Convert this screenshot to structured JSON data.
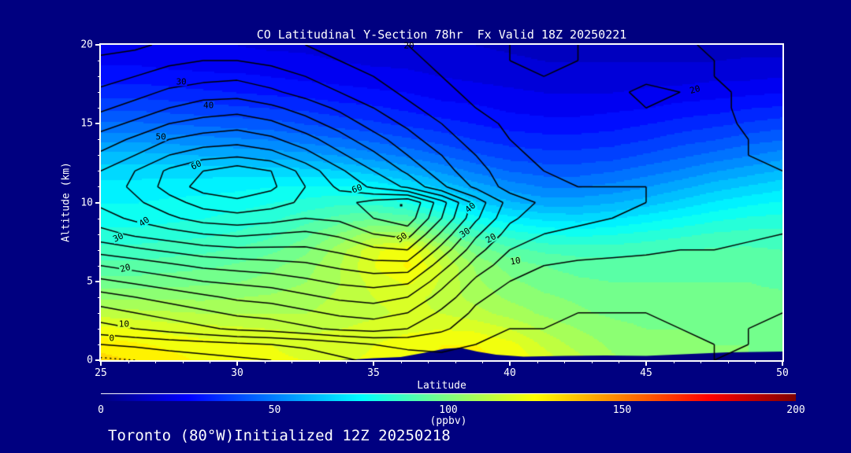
{
  "title": "CO Latitudinal Y-Section 78hr  Fx Valid 18Z 20250221",
  "footer": "Toronto (80°W)Initialized 12Z 20250218",
  "colors": {
    "background": "#000080",
    "text": "#ffffff",
    "contour_line": "#000000",
    "terrain": "#000080",
    "frame": "#ffffff"
  },
  "chart_data": {
    "type": "heatmap",
    "title": "CO Latitudinal Y-Section 78hr  Fx Valid 18Z 20250221",
    "xlabel": "Latitude",
    "ylabel": "Altitude (km)",
    "xlim": [
      25,
      50
    ],
    "ylim": [
      0,
      20
    ],
    "xticks": [
      25,
      30,
      35,
      40,
      45,
      50
    ],
    "yticks": [
      0,
      5,
      10,
      15,
      20
    ],
    "x_minor_step": 1,
    "y_minor_step": 1,
    "fill_units": "ppbv",
    "fill_range": [
      0,
      200
    ],
    "fill_band_step": 5,
    "grid_lats": [
      25,
      26.25,
      27.5,
      28.75,
      30,
      31.25,
      32.5,
      33.75,
      35,
      36.25,
      37.5,
      38.75,
      40,
      41.25,
      42.5,
      43.75,
      45,
      46.25,
      47.5,
      48.75,
      50
    ],
    "grid_alts": [
      0,
      1,
      2,
      3,
      4,
      5,
      6,
      7,
      8,
      9,
      10,
      11,
      12,
      13,
      14,
      15,
      16,
      17,
      18,
      19,
      20
    ],
    "fill_grid": [
      [
        132,
        130,
        127,
        124,
        122,
        121,
        120,
        119,
        121,
        124,
        126,
        127,
        125,
        118,
        112,
        106,
        103,
        102,
        101,
        100,
        100
      ],
      [
        128,
        126,
        124,
        122,
        121,
        120,
        118,
        118,
        120,
        123,
        125,
        125,
        122,
        114,
        108,
        104,
        102,
        101,
        100,
        100,
        99
      ],
      [
        122,
        120,
        118,
        117,
        116,
        115,
        114,
        115,
        117,
        119,
        120,
        119,
        115,
        109,
        105,
        102,
        100,
        100,
        99,
        99,
        98
      ],
      [
        113,
        112,
        111,
        110,
        110,
        110,
        110,
        112,
        114,
        116,
        115,
        112,
        108,
        104,
        101,
        99,
        98,
        98,
        98,
        97,
        97
      ],
      [
        104,
        104,
        104,
        104,
        105,
        106,
        108,
        111,
        115,
        117,
        113,
        108,
        104,
        101,
        99,
        97,
        97,
        97,
        96,
        96,
        96
      ],
      [
        97,
        97,
        98,
        99,
        100,
        102,
        105,
        110,
        117,
        121,
        114,
        106,
        101,
        98,
        96,
        95,
        95,
        95,
        95,
        95,
        94
      ],
      [
        92,
        92,
        93,
        94,
        96,
        99,
        103,
        110,
        120,
        126,
        115,
        104,
        98,
        95,
        93,
        92,
        93,
        93,
        93,
        93,
        92
      ],
      [
        87,
        87,
        88,
        89,
        91,
        94,
        99,
        108,
        119,
        124,
        110,
        98,
        92,
        89,
        88,
        88,
        89,
        90,
        91,
        91,
        90
      ],
      [
        82,
        82,
        83,
        84,
        86,
        89,
        94,
        101,
        108,
        108,
        97,
        88,
        83,
        80,
        79,
        80,
        82,
        84,
        86,
        87,
        87
      ],
      [
        78,
        78,
        79,
        80,
        82,
        84,
        88,
        92,
        95,
        93,
        85,
        77,
        72,
        69,
        68,
        70,
        73,
        76,
        79,
        81,
        82
      ],
      [
        75,
        75,
        76,
        77,
        78,
        80,
        82,
        84,
        84,
        80,
        73,
        66,
        61,
        58,
        58,
        60,
        63,
        67,
        71,
        74,
        76
      ],
      [
        72,
        72,
        73,
        73,
        74,
        75,
        76,
        76,
        74,
        70,
        64,
        58,
        53,
        50,
        50,
        52,
        55,
        59,
        63,
        66,
        69
      ],
      [
        68,
        68,
        68,
        68,
        68,
        68,
        67,
        66,
        63,
        59,
        54,
        49,
        45,
        43,
        43,
        45,
        48,
        51,
        55,
        58,
        61
      ],
      [
        62,
        62,
        61,
        60,
        59,
        58,
        57,
        55,
        52,
        49,
        45,
        41,
        38,
        37,
        37,
        38,
        41,
        44,
        47,
        50,
        53
      ],
      [
        54,
        54,
        53,
        52,
        51,
        50,
        48,
        46,
        44,
        41,
        38,
        35,
        33,
        32,
        32,
        33,
        35,
        38,
        40,
        43,
        45
      ],
      [
        46,
        46,
        45,
        44,
        43,
        42,
        40,
        38,
        36,
        34,
        32,
        30,
        28,
        27,
        27,
        28,
        30,
        32,
        34,
        36,
        38
      ],
      [
        39,
        39,
        38,
        37,
        36,
        35,
        34,
        32,
        31,
        29,
        27,
        26,
        24,
        23,
        23,
        24,
        25,
        27,
        28,
        30,
        31
      ],
      [
        33,
        33,
        32,
        31,
        30,
        29,
        28,
        27,
        26,
        25,
        23,
        22,
        21,
        20,
        20,
        20,
        21,
        22,
        23,
        24,
        25
      ],
      [
        28,
        28,
        27,
        26,
        26,
        25,
        24,
        23,
        22,
        21,
        20,
        19,
        18,
        17,
        17,
        17,
        18,
        18,
        19,
        19,
        20
      ],
      [
        24,
        24,
        23,
        23,
        22,
        22,
        21,
        20,
        19,
        19,
        18,
        17,
        16,
        15,
        15,
        15,
        15,
        15,
        15,
        16,
        16
      ],
      [
        21,
        21,
        20,
        20,
        20,
        19,
        19,
        18,
        18,
        17,
        16,
        15,
        14,
        13,
        13,
        12,
        12,
        12,
        12,
        12,
        12
      ]
    ],
    "line_levels_step": 5,
    "line_levels_min": -5,
    "line_levels_max": 70,
    "line_grid": [
      [
        -6,
        -5,
        -3,
        -2,
        -1,
        0,
        2,
        4,
        6,
        8,
        9,
        9,
        8,
        7,
        7,
        7,
        8,
        9,
        10,
        9,
        8
      ],
      [
        0,
        1,
        2,
        3,
        4,
        5,
        6,
        8,
        10,
        11,
        11,
        10,
        9,
        8,
        8,
        8,
        8,
        9,
        10,
        10,
        9
      ],
      [
        8,
        10,
        12,
        14,
        16,
        17,
        19,
        21,
        22,
        20,
        16,
        12,
        10,
        10,
        9,
        9,
        9,
        10,
        10,
        10,
        9
      ],
      [
        13,
        15,
        17,
        19,
        21,
        22,
        24,
        26,
        27,
        25,
        19,
        14,
        12,
        11,
        10,
        10,
        10,
        10,
        10,
        10,
        10
      ],
      [
        18,
        20,
        22,
        24,
        26,
        27,
        29,
        31,
        32,
        30,
        23,
        16,
        13,
        12,
        11,
        11,
        11,
        11,
        11,
        11,
        10
      ],
      [
        24,
        26,
        28,
        30,
        31,
        32,
        34,
        36,
        37,
        36,
        27,
        19,
        15,
        13,
        12,
        12,
        12,
        12,
        12,
        12,
        11
      ],
      [
        30,
        32,
        34,
        36,
        37,
        38,
        39,
        41,
        43,
        43,
        32,
        23,
        17,
        15,
        14,
        14,
        13,
        13,
        13,
        13,
        12
      ],
      [
        37,
        39,
        41,
        43,
        44,
        44,
        44,
        46,
        49,
        50,
        38,
        27,
        20,
        18,
        17,
        16,
        16,
        15,
        15,
        14,
        14
      ],
      [
        43,
        46,
        48,
        50,
        51,
        50,
        49,
        51,
        55,
        57,
        44,
        31,
        23,
        20,
        19,
        18,
        18,
        17,
        17,
        16,
        15
      ],
      [
        48,
        51,
        54,
        57,
        58,
        57,
        55,
        56,
        60,
        63,
        50,
        36,
        26,
        22,
        21,
        20,
        19,
        19,
        18,
        17,
        16
      ],
      [
        51,
        54,
        58,
        62,
        64,
        62,
        59,
        58,
        62,
        65,
        52,
        38,
        28,
        24,
        22,
        21,
        20,
        19,
        18,
        17,
        16
      ],
      [
        52,
        56,
        62,
        67,
        68,
        66,
        60,
        54,
        49,
        44,
        36,
        29,
        23,
        21,
        20,
        20,
        20,
        19,
        18,
        16,
        15
      ],
      [
        50,
        55,
        61,
        65,
        68,
        65,
        58,
        51,
        45,
        39,
        32,
        27,
        22,
        20,
        19,
        19,
        19,
        18,
        17,
        16,
        15
      ],
      [
        46,
        50,
        55,
        58,
        59,
        57,
        52,
        46,
        41,
        35,
        30,
        25,
        21,
        19,
        18,
        18,
        19,
        18,
        17,
        15,
        14
      ],
      [
        42,
        46,
        50,
        52,
        53,
        51,
        47,
        42,
        37,
        32,
        27,
        23,
        20,
        18,
        17,
        18,
        18,
        17,
        16,
        15,
        14
      ],
      [
        38,
        41,
        45,
        47,
        48,
        46,
        42,
        38,
        33,
        29,
        25,
        22,
        19,
        17,
        17,
        18,
        19,
        19,
        17,
        14,
        13
      ],
      [
        34,
        37,
        40,
        42,
        43,
        41,
        38,
        34,
        30,
        26,
        23,
        20,
        18,
        16,
        16,
        18,
        20,
        19,
        16,
        14,
        13
      ],
      [
        31,
        33,
        36,
        38,
        38,
        36,
        33,
        30,
        27,
        24,
        21,
        19,
        17,
        15,
        16,
        19,
        21,
        20,
        16,
        14,
        13
      ],
      [
        28,
        30,
        32,
        33,
        34,
        32,
        30,
        27,
        25,
        22,
        20,
        18,
        16,
        15,
        15,
        17,
        19,
        18,
        15,
        13,
        12
      ],
      [
        26,
        27,
        29,
        30,
        30,
        29,
        27,
        25,
        23,
        21,
        19,
        17,
        15,
        14,
        15,
        17,
        18,
        17,
        15,
        13,
        12
      ],
      [
        23,
        24,
        26,
        27,
        27,
        26,
        25,
        24,
        22,
        20,
        18,
        16,
        15,
        14,
        15,
        16,
        17,
        16,
        14,
        12,
        11
      ]
    ],
    "contour_labels": [
      {
        "text": "30",
        "lat": 27.95,
        "alt": 17.65,
        "rot": 0,
        "bg": true
      },
      {
        "text": "40",
        "lat": 28.95,
        "alt": 16.15,
        "rot": 0,
        "bg": true
      },
      {
        "text": "50",
        "lat": 27.2,
        "alt": 14.15,
        "rot": 0,
        "bg": true
      },
      {
        "text": "60",
        "lat": 28.5,
        "alt": 12.35,
        "rot": -25,
        "bg": true
      },
      {
        "text": "20",
        "lat": 36.3,
        "alt": 19.95,
        "rot": 0,
        "bg": false
      },
      {
        "text": "60",
        "lat": 34.4,
        "alt": 10.85,
        "rot": -20,
        "bg": true
      },
      {
        "text": "50",
        "lat": 36.05,
        "alt": 7.8,
        "rot": -35,
        "bg": true
      },
      {
        "text": "40",
        "lat": 38.55,
        "alt": 9.7,
        "rot": -40,
        "bg": true
      },
      {
        "text": "30",
        "lat": 38.35,
        "alt": 8.1,
        "rot": -35,
        "bg": true
      },
      {
        "text": "20",
        "lat": 39.3,
        "alt": 7.75,
        "rot": -30,
        "bg": true
      },
      {
        "text": "10",
        "lat": 40.2,
        "alt": 6.3,
        "rot": -10,
        "bg": true
      },
      {
        "text": "20",
        "lat": 46.8,
        "alt": 17.15,
        "rot": -15,
        "bg": true
      },
      {
        "text": "40",
        "lat": 26.6,
        "alt": 8.8,
        "rot": -35,
        "bg": true
      },
      {
        "text": "30",
        "lat": 25.65,
        "alt": 7.8,
        "rot": -25,
        "bg": true
      },
      {
        "text": "20",
        "lat": 25.9,
        "alt": 5.85,
        "rot": -15,
        "bg": true
      },
      {
        "text": "10",
        "lat": 25.85,
        "alt": 2.3,
        "rot": 0,
        "bg": true
      },
      {
        "text": "0",
        "lat": 25.4,
        "alt": 1.4,
        "rot": 0,
        "bg": true
      }
    ],
    "dot_markers": [
      [
        36.0,
        9.85
      ]
    ],
    "terrain": [
      [
        33.8,
        0
      ],
      [
        35,
        0.12
      ],
      [
        36,
        0.2
      ],
      [
        36.8,
        0.45
      ],
      [
        37.6,
        0.72
      ],
      [
        38.2,
        0.78
      ],
      [
        38.8,
        0.55
      ],
      [
        39.5,
        0.35
      ],
      [
        40.5,
        0.22
      ],
      [
        42,
        0.28
      ],
      [
        43.5,
        0.3
      ],
      [
        45,
        0.28
      ],
      [
        46,
        0.35
      ],
      [
        47,
        0.42
      ],
      [
        48,
        0.5
      ],
      [
        49,
        0.52
      ],
      [
        50,
        0.55
      ]
    ],
    "colorbar": {
      "min": 0,
      "max": 200,
      "ticks": [
        0,
        50,
        100,
        150,
        200
      ],
      "label": "(ppbv)"
    }
  }
}
